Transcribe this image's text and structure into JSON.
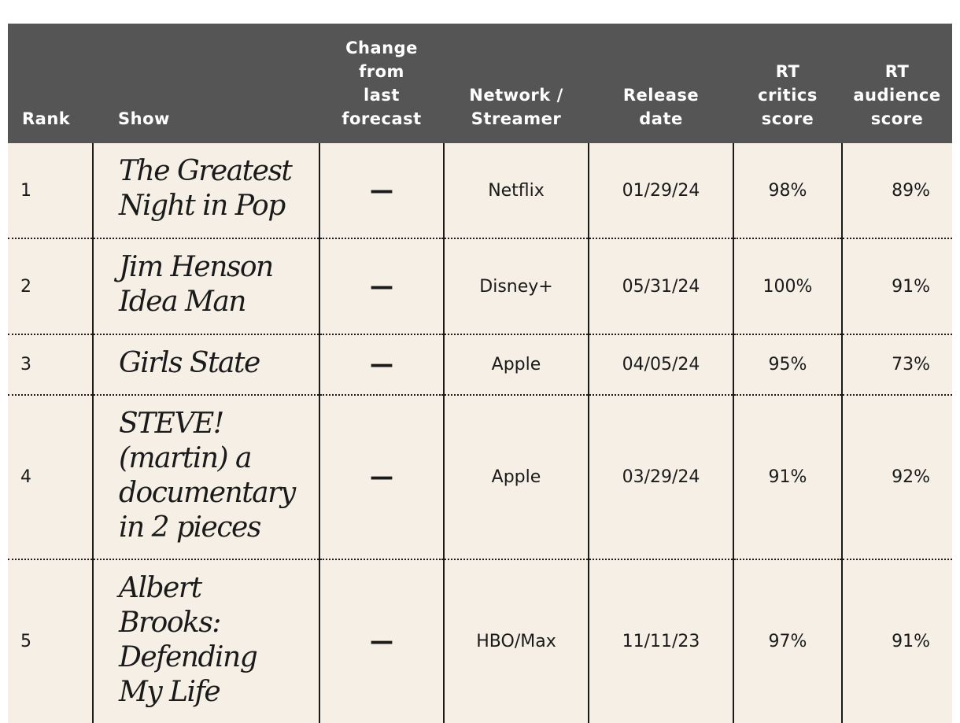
{
  "table": {
    "columns": [
      "Rank",
      "Show",
      "Change\nfrom\nlast\nforecast",
      "Network /\nStreamer",
      "Release\ndate",
      "RT\ncritics\nscore",
      "RT\naudience\nscore"
    ],
    "rows": [
      {
        "rank": "1",
        "show": "The Greatest\nNight in Pop",
        "change": "—",
        "network": "Netflix",
        "release_date": "01/29/24",
        "critics": "98%",
        "audience": "89%"
      },
      {
        "rank": "2",
        "show": "Jim Henson\nIdea Man",
        "change": "—",
        "network": "Disney+",
        "release_date": "05/31/24",
        "critics": "100%",
        "audience": "91%"
      },
      {
        "rank": "3",
        "show": "Girls State",
        "change": "—",
        "network": "Apple",
        "release_date": "04/05/24",
        "critics": "95%",
        "audience": "73%"
      },
      {
        "rank": "4",
        "show": "STEVE!\n(martin) a\ndocumentary\nin 2 pieces",
        "change": "—",
        "network": "Apple",
        "release_date": "03/29/24",
        "critics": "91%",
        "audience": "92%"
      },
      {
        "rank": "5",
        "show": "Albert\nBrooks:\nDefending\nMy Life",
        "change": "—",
        "network": "HBO/Max",
        "release_date": "11/11/23",
        "critics": "97%",
        "audience": "91%"
      }
    ]
  },
  "colors": {
    "header_background": "#555555",
    "header_text": "#ffffff",
    "row_background": "#f5efe6",
    "body_text": "#1a1a1a"
  }
}
